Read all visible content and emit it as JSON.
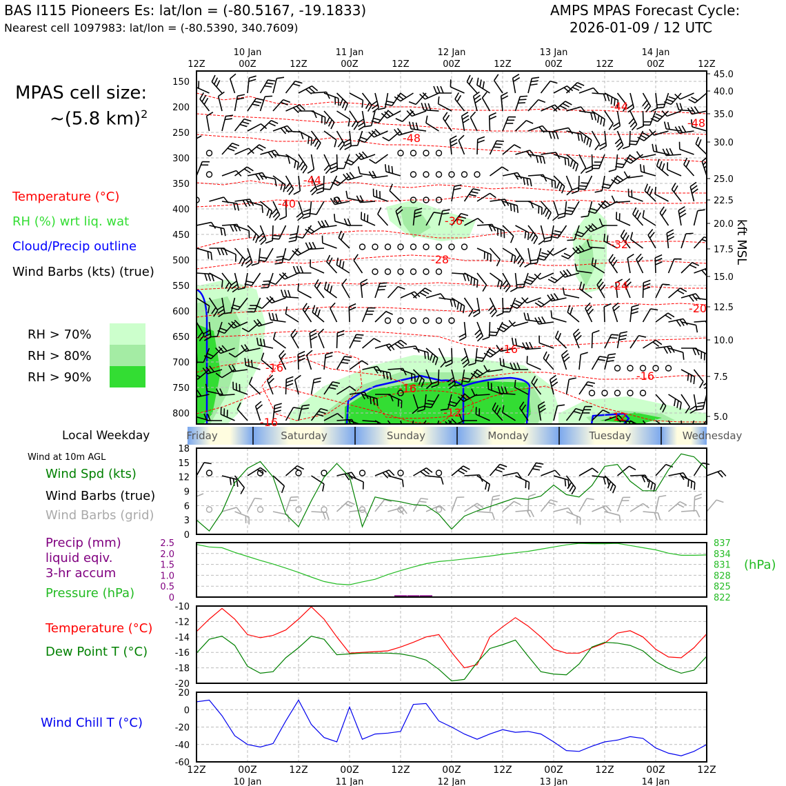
{
  "header": {
    "line1": "BAS I115 Pioneers Es: lat/lon = (-80.5167, -19.1833)",
    "line2": "Nearest cell 1097983: lat/lon = (-80.5390, 340.7609)",
    "right1": "AMPS MPAS Forecast Cycle:",
    "right2": "2026-01-09 / 12 UTC"
  },
  "cell_size": {
    "line1": "MPAS cell size:",
    "line2": "~(5.8 km)",
    "sup": "2"
  },
  "legend": {
    "temperature": "Temperature (°C)",
    "rh": "RH (%) wrt liq. wat",
    "cloud": "Cloud/Precip outline",
    "wind": "Wind Barbs (kts) (true)",
    "rh70": "RH > 70%",
    "rh80": "RH > 80%",
    "rh90": "RH > 90%"
  },
  "colors": {
    "temp": "#ff0000",
    "rh": "#33dd33",
    "cloud": "#0000ff",
    "rh70": "#ccffcc",
    "rh80": "#a4eca4",
    "rh90": "#33dd33",
    "dew": "#008000",
    "pressure": "#22bb22",
    "precip": "#800080",
    "chill": "#0000ee",
    "grid_barb": "#aaaaaa"
  },
  "time_axis": {
    "top_labels": [
      "12Z",
      "00Z",
      "12Z",
      "00Z",
      "12Z",
      "00Z",
      "12Z",
      "00Z",
      "12Z",
      "00Z",
      "12Z"
    ],
    "day_labels": [
      "10 Jan",
      "11 Jan",
      "12 Jan",
      "13 Jan",
      "14 Jan"
    ]
  },
  "weekday": {
    "label": "Local Weekday",
    "days": [
      "Friday",
      "Saturday",
      "Sunday",
      "Monday",
      "Tuesday",
      "Wednesday"
    ]
  },
  "panels": {
    "wind": {
      "top_note": "Wind at 10m AGL",
      "l1": "Wind Spd (kts)",
      "l2": "Wind Barbs (true)",
      "l3": "Wind Barbs (grid)"
    },
    "precip": {
      "l1": "Precip (mm)",
      "l2": "liquid eqiv.",
      "l3": "3-hr accum",
      "l4": "Pressure (hPa)",
      "unit_right": "(hPa)"
    },
    "temp": {
      "l1": "Temperature (°C)",
      "l2": "Dew Point T (°C)"
    },
    "chill": {
      "l1": "Wind Chill T (°C)"
    }
  },
  "right_axis_label": "kft MSL",
  "chart_data": [
    {
      "type": "heatmap",
      "title": "",
      "x_count": 41,
      "y_ticks_hPa": [
        "150",
        "200",
        "250",
        "300",
        "350",
        "400",
        "450",
        "500",
        "550",
        "600",
        "650",
        "700",
        "750",
        "800"
      ],
      "y2_ticks_kft": [
        "45.0",
        "40.0",
        "35.0",
        "30.0",
        "25.0",
        "22.5",
        "20.0",
        "17.5",
        "15.0",
        "12.5",
        "10.0",
        "7.5",
        "5.0"
      ],
      "temperature_contour_labels": [
        "-44",
        "-48",
        "-48",
        "-44",
        "-40",
        "-36",
        "-32",
        "-28",
        "-24",
        "-20",
        "-16",
        "-16",
        "-16",
        "-16",
        "-12",
        "-12",
        "-16"
      ]
    },
    {
      "type": "line",
      "name": "Wind Spd (kts)",
      "ylim": [
        0,
        18
      ],
      "yticks": [
        "0",
        "3",
        "6",
        "9",
        "12",
        "15",
        "18"
      ],
      "values": [
        3.0,
        0.7,
        4.7,
        10.8,
        13.8,
        15.2,
        12.0,
        4.2,
        1.6,
        7.0,
        11.9,
        14.8,
        12.0,
        1.6,
        7.8,
        7.2,
        6.8,
        6.2,
        6.0,
        4.2,
        1.1,
        3.8,
        4.9,
        5.8,
        6.7,
        7.6,
        7.3,
        8.0,
        10.3,
        8.3,
        7.8,
        10.2,
        14.2,
        14.6,
        11.1,
        9.1,
        9.1,
        13.5,
        16.8,
        16.2,
        13.6
      ]
    },
    {
      "type": "line",
      "name": "Pressure (hPa)",
      "ylim": [
        822,
        837
      ],
      "yticks": [
        "822",
        "825",
        "828",
        "831",
        "834",
        "837"
      ],
      "values": [
        836.5,
        835.8,
        835.6,
        834.3,
        833.2,
        832.1,
        831.1,
        830.0,
        828.8,
        827.5,
        826.3,
        825.6,
        825.4,
        826.2,
        826.9,
        828.2,
        829.3,
        830.3,
        831.2,
        831.8,
        832.1,
        832.5,
        832.9,
        833.3,
        833.8,
        834.2,
        834.6,
        835.2,
        835.8,
        836.4,
        836.8,
        836.7,
        836.7,
        836.8,
        836.2,
        835.6,
        835.0,
        834.1,
        833.5,
        833.5,
        833.6
      ]
    },
    {
      "type": "line",
      "name": "Precip (mm)",
      "ylim": [
        0,
        2.5
      ],
      "yticks": [
        "0",
        "0.5",
        "1.0",
        "1.5",
        "2.0",
        "2.5"
      ],
      "values": [
        0,
        0,
        0,
        0,
        0,
        0,
        0,
        0,
        0,
        0,
        0,
        0,
        0,
        0,
        0,
        0,
        0.05,
        0.05,
        0.05,
        0,
        0,
        0,
        0,
        0,
        0,
        0,
        0,
        0,
        0,
        0,
        0,
        0,
        0,
        0,
        0,
        0,
        0,
        0,
        0,
        0,
        0
      ]
    },
    {
      "type": "line",
      "ylim": [
        -20,
        -10
      ],
      "yticks": [
        "-20",
        "-18",
        "-16",
        "-14",
        "-12",
        "-10"
      ],
      "series": [
        {
          "name": "Temperature (°C)",
          "values": [
            -13.3,
            -11.7,
            -10.3,
            -11.7,
            -13.7,
            -14.1,
            -13.8,
            -13.1,
            -11.7,
            -10.1,
            -11.7,
            -14.0,
            -16.1,
            -16.0,
            -15.9,
            -15.8,
            -15.3,
            -14.7,
            -14.0,
            -13.7,
            -16.0,
            -18.0,
            -17.6,
            -14.0,
            -12.7,
            -11.5,
            -12.6,
            -14.0,
            -15.6,
            -16.1,
            -16.1,
            -15.4,
            -14.8,
            -13.5,
            -13.2,
            -14.0,
            -15.6,
            -16.6,
            -16.7,
            -15.4,
            -13.6
          ]
        },
        {
          "name": "Dew Point T (°C)",
          "values": [
            -16.1,
            -14.3,
            -13.9,
            -15.1,
            -17.8,
            -18.7,
            -18.5,
            -16.7,
            -15.4,
            -13.9,
            -14.3,
            -16.3,
            -16.2,
            -16.1,
            -16.1,
            -16.1,
            -16.2,
            -16.5,
            -17.0,
            -18.2,
            -19.7,
            -19.5,
            -17.3,
            -15.5,
            -15.0,
            -14.4,
            -16.5,
            -18.5,
            -18.8,
            -18.9,
            -17.5,
            -15.3,
            -14.7,
            -14.8,
            -15.1,
            -15.8,
            -17.2,
            -18.1,
            -18.7,
            -18.3,
            -16.5
          ]
        }
      ]
    },
    {
      "type": "line",
      "name": "Wind Chill T (°C)",
      "ylim": [
        -60,
        20
      ],
      "yticks": [
        "-60",
        "-40",
        "-20",
        "0",
        "20"
      ],
      "values": [
        9,
        11,
        -7,
        -30,
        -40,
        -43,
        -39,
        -13,
        11,
        -17,
        -32,
        -37,
        3,
        -34,
        -28,
        -27,
        -25,
        6,
        7,
        -13,
        -20,
        -28,
        -34,
        -28,
        -23,
        -26,
        -25,
        -28,
        -37,
        -47,
        -48,
        -42,
        -37,
        -35,
        -31,
        -33,
        -44,
        -50,
        -53,
        -48,
        -40
      ]
    }
  ]
}
